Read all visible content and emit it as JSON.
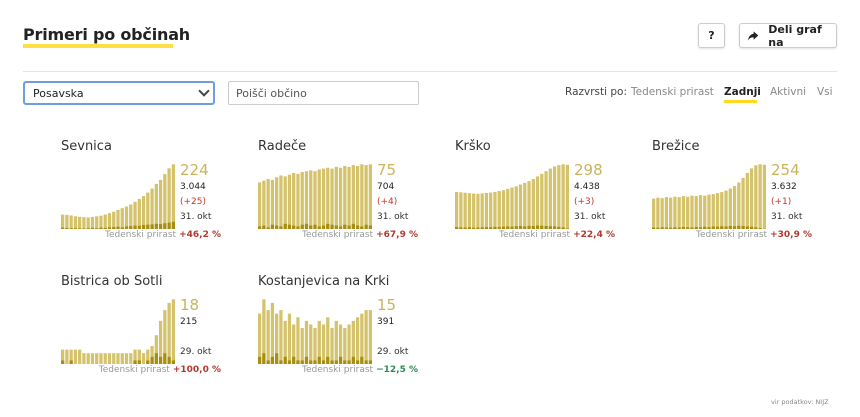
{
  "header": {
    "title": "Primeri po občinah",
    "help_label": "?",
    "share_label": "Deli graf na"
  },
  "filters": {
    "region_value": "Posavska",
    "search_placeholder": "Poišči občino"
  },
  "sort": {
    "label": "Razvrsti po:",
    "options": [
      "Tedenski prirast",
      "Zadnji",
      "Aktivni",
      "Vsi"
    ],
    "active": "Zadnji"
  },
  "growth_label": "Tedenski prirast",
  "source": "vir podatkov: NIJZ",
  "colors": {
    "bar_total": "#d4c36b",
    "bar_daily": "#a88e10",
    "accent": "#ffd922",
    "increase": "#b03a2e",
    "decrease": "#2e8b57"
  },
  "chart_data": [
    {
      "type": "bar",
      "name": "Sevnica",
      "active": "224",
      "total": "3.044",
      "change": "(+25)",
      "date": "31. okt",
      "weekly_growth": "+46,2 %",
      "growth_sign": "pos",
      "active_series": [
        50,
        49,
        47,
        44,
        42,
        41,
        40,
        42,
        44,
        46,
        50,
        55,
        60,
        66,
        72,
        78,
        85,
        94,
        104,
        114,
        126,
        140,
        156,
        170,
        190,
        210,
        224
      ],
      "daily_series": [
        5,
        4,
        3,
        3,
        2,
        2,
        3,
        4,
        3,
        5,
        4,
        6,
        7,
        8,
        6,
        9,
        10,
        12,
        11,
        14,
        15,
        16,
        18,
        17,
        20,
        22,
        25
      ]
    },
    {
      "type": "bar",
      "name": "Radeče",
      "active": "75",
      "total": "704",
      "change": "(+4)",
      "date": "31. okt",
      "weekly_growth": "+67,9 %",
      "growth_sign": "pos",
      "active_series": [
        54,
        56,
        58,
        57,
        60,
        62,
        61,
        63,
        65,
        64,
        66,
        67,
        68,
        67,
        69,
        70,
        71,
        70,
        72,
        71,
        73,
        72,
        74,
        73,
        75,
        74,
        75
      ],
      "daily_series": [
        3,
        4,
        2,
        5,
        4,
        3,
        6,
        5,
        4,
        3,
        5,
        6,
        4,
        5,
        3,
        4,
        6,
        5,
        4,
        3,
        5,
        4,
        6,
        4,
        3,
        5,
        4
      ]
    },
    {
      "type": "bar",
      "name": "Krško",
      "active": "298",
      "total": "4.438",
      "change": "(+3)",
      "date": "31. okt",
      "weekly_growth": "+22,4 %",
      "growth_sign": "pos",
      "active_series": [
        172,
        170,
        168,
        166,
        164,
        163,
        165,
        167,
        169,
        172,
        176,
        180,
        186,
        192,
        198,
        206,
        214,
        222,
        232,
        244,
        256,
        268,
        280,
        290,
        296,
        300,
        298
      ],
      "daily_series": [
        9,
        8,
        7,
        8,
        6,
        7,
        8,
        9,
        8,
        10,
        9,
        11,
        12,
        11,
        13,
        14,
        12,
        15,
        14,
        16,
        15,
        14,
        13,
        12,
        10,
        8,
        3
      ]
    },
    {
      "type": "bar",
      "name": "Brežice",
      "active": "254",
      "total": "3.632",
      "change": "(+1)",
      "date": "31. okt",
      "weekly_growth": "+30,9 %",
      "growth_sign": "pos",
      "active_series": [
        120,
        124,
        122,
        126,
        124,
        128,
        126,
        130,
        128,
        132,
        130,
        134,
        132,
        136,
        138,
        142,
        146,
        152,
        160,
        170,
        184,
        202,
        222,
        240,
        252,
        256,
        254
      ],
      "daily_series": [
        6,
        5,
        7,
        6,
        5,
        7,
        6,
        8,
        7,
        6,
        8,
        7,
        9,
        8,
        10,
        9,
        11,
        10,
        12,
        11,
        13,
        12,
        10,
        9,
        7,
        4,
        1
      ]
    },
    {
      "type": "bar",
      "name": "Bistrica ob Sotli",
      "active": "18",
      "total": "215",
      "change": "",
      "date": "29. okt",
      "weekly_growth": "+100,0 %",
      "growth_sign": "pos",
      "active_series": [
        4,
        4,
        4,
        4,
        4,
        3,
        3,
        3,
        3,
        3,
        3,
        3,
        3,
        3,
        3,
        3,
        3,
        4,
        4,
        3,
        4,
        5,
        8,
        12,
        15,
        17,
        18
      ],
      "daily_series": [
        1,
        0,
        1,
        0,
        0,
        0,
        0,
        0,
        0,
        0,
        0,
        0,
        0,
        0,
        0,
        0,
        0,
        1,
        1,
        0,
        1,
        2,
        3,
        2,
        3,
        2,
        1
      ]
    },
    {
      "type": "bar",
      "name": "Kostanjevica na Krki",
      "active": "15",
      "total": "391",
      "change": "",
      "date": "29. okt",
      "weekly_growth": "−12,5 %",
      "growth_sign": "neg",
      "active_series": [
        14,
        18,
        15,
        17,
        14,
        15,
        12,
        14,
        11,
        13,
        10,
        12,
        11,
        10,
        12,
        11,
        13,
        10,
        12,
        11,
        10,
        11,
        12,
        13,
        14,
        15,
        15
      ],
      "daily_series": [
        2,
        3,
        1,
        2,
        3,
        1,
        2,
        1,
        2,
        1,
        1,
        2,
        1,
        1,
        2,
        1,
        2,
        1,
        1,
        2,
        1,
        1,
        2,
        1,
        2,
        1,
        1
      ]
    }
  ]
}
